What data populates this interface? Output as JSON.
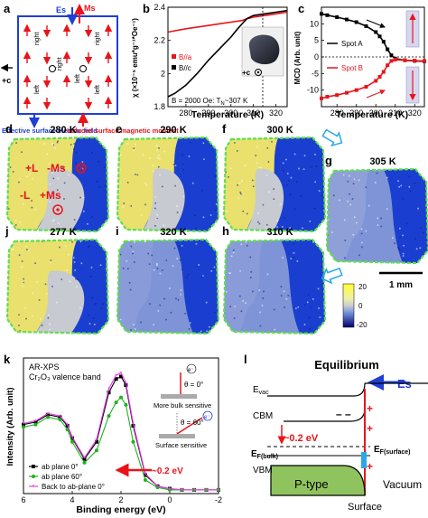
{
  "panels": {
    "a": {
      "label": "a",
      "es": "Es",
      "ms": "Ms",
      "plus_c": "+c",
      "right": "right",
      "left": "left",
      "effective_field": "Effective surface electric field",
      "induced_moment": "Induced surface magnetic moment"
    },
    "b": {
      "label": "b",
      "legend": [
        "B//a",
        "B//c"
      ],
      "condition_b": "B = 2000 Oe",
      "condition_tn": "T",
      "tn_sub": "N",
      "tn_value": "~307 K",
      "inset_label": "+c"
    },
    "c": {
      "label": "c",
      "legend": [
        "Spot A",
        "Spot B"
      ]
    },
    "maps": [
      {
        "label": "d",
        "temp": "280 K"
      },
      {
        "label": "e",
        "temp": "290 K"
      },
      {
        "label": "f",
        "temp": "300 K"
      },
      {
        "label": "g",
        "temp": "305 K"
      },
      {
        "label": "j",
        "temp": "277 K"
      },
      {
        "label": "i",
        "temp": "320 K"
      },
      {
        "label": "h",
        "temp": "310 K"
      }
    ],
    "d_annotations": {
      "plus_l": "+L",
      "minus_ms": "-Ms",
      "minus_l": "-L",
      "plus_ms": "+Ms"
    },
    "colorbar": {
      "max": "20",
      "zero": "0",
      "min": "-20",
      "scalebar": "1 mm"
    },
    "k": {
      "label": "k",
      "title1": "AR-XPS",
      "title2": "Cr₂O₃ valence band",
      "theta0": "θ = 0°",
      "theta60": "θ = 60°",
      "bulk": "More bulk sensitive",
      "surface": "Surface sensitive",
      "shift": "~0.2 eV",
      "electron": "e⁻"
    },
    "l": {
      "label": "l",
      "title": "Equilibrium",
      "es": "Es",
      "evac": "E",
      "evac_sub": "vac",
      "cbm": "CBM",
      "shift": "~0.2 eV",
      "ef_bulk": "E",
      "ef_bulk_sub": "F(bulk)",
      "ef_surf": "E",
      "ef_surf_sub": "F(surface)",
      "vbm": "VBM",
      "ptype": "P-type",
      "vacuum": "Vacuum",
      "surface": "Surface"
    }
  },
  "chart_data": [
    {
      "type": "line",
      "panel": "b",
      "xlabel": "Temperature (K)",
      "ylabel": "χ (×10⁻⁵ emu*g⁻¹*Oe⁻¹)",
      "xlim": [
        272,
        325
      ],
      "ylim": [
        1.8,
        2.4
      ],
      "xticks": [
        280,
        290,
        300,
        310,
        320
      ],
      "yticks": [
        1.8,
        2.0,
        2.2,
        2.4
      ],
      "series": [
        {
          "name": "B//a",
          "color": "#e8141a",
          "x": [
            272,
            280,
            290,
            300,
            305,
            307,
            310,
            315,
            320,
            325
          ],
          "y": [
            2.25,
            2.27,
            2.29,
            2.31,
            2.32,
            2.33,
            2.34,
            2.35,
            2.36,
            2.37
          ]
        },
        {
          "name": "B//c",
          "color": "#000000",
          "x": [
            272,
            275,
            280,
            285,
            290,
            295,
            300,
            303,
            305,
            307,
            310,
            315,
            320,
            325
          ],
          "y": [
            1.86,
            1.88,
            1.93,
            2.0,
            2.08,
            2.15,
            2.22,
            2.27,
            2.3,
            2.33,
            2.35,
            2.36,
            2.37,
            2.38
          ]
        }
      ]
    },
    {
      "type": "line",
      "panel": "c",
      "xlabel": "Temperature (K)",
      "ylabel": "MCD (Arb. unit)",
      "xlim": [
        272,
        325
      ],
      "ylim": [
        -15,
        15
      ],
      "xticks": [
        280,
        290,
        300,
        310,
        320
      ],
      "yticks": [
        -10,
        -5,
        0,
        5,
        10
      ],
      "series": [
        {
          "name": "Spot A",
          "color": "#000000",
          "x": [
            272,
            275,
            280,
            285,
            290,
            295,
            300,
            302,
            304,
            306,
            308,
            310,
            315,
            320,
            325
          ],
          "y": [
            13,
            12.6,
            12,
            11.3,
            10.5,
            9.3,
            7.5,
            6.2,
            4.6,
            2.3,
            0.5,
            -0.5,
            -1,
            -1.2,
            -1.3
          ]
        },
        {
          "name": "Spot B",
          "color": "#e8141a",
          "x": [
            272,
            275,
            280,
            285,
            290,
            295,
            300,
            302,
            304,
            306,
            308,
            310,
            315,
            320,
            325
          ],
          "y": [
            -12.5,
            -12,
            -11.5,
            -10.8,
            -10,
            -9,
            -7.2,
            -6,
            -4.5,
            -2.5,
            -1.2,
            -0.8,
            -1,
            -1.1,
            -1.2
          ]
        }
      ]
    },
    {
      "type": "line",
      "panel": "k",
      "xlabel": "Binding energy (eV)",
      "ylabel": "Intensity (Arb. unit)",
      "xlim": [
        6,
        -2
      ],
      "ylim": [
        0,
        1.1
      ],
      "xticks": [
        6,
        4,
        2,
        0,
        -2
      ],
      "series": [
        {
          "name": "ab plane 0°",
          "color": "#000000",
          "x": [
            6,
            5.5,
            5,
            4.5,
            4.2,
            4.0,
            3.5,
            3.0,
            2.5,
            2.2,
            2.0,
            1.8,
            1.5,
            1.0,
            0.5,
            0,
            -0.5,
            -1,
            -1.5,
            -2
          ],
          "y": [
            0.56,
            0.58,
            0.64,
            0.62,
            0.55,
            0.45,
            0.28,
            0.42,
            0.82,
            0.93,
            0.95,
            0.88,
            0.55,
            0.15,
            0.06,
            0.04,
            0.03,
            0.03,
            0.03,
            0.03
          ]
        },
        {
          "name": "ab plane 60°",
          "color": "#22b022",
          "x": [
            6,
            5.5,
            5,
            4.5,
            4.2,
            4.0,
            3.5,
            3.0,
            2.5,
            2.2,
            2.0,
            1.8,
            1.5,
            1.0,
            0.5,
            0,
            -0.5,
            -1,
            -1.5,
            -2
          ],
          "y": [
            0.54,
            0.56,
            0.62,
            0.6,
            0.52,
            0.42,
            0.25,
            0.35,
            0.63,
            0.74,
            0.78,
            0.72,
            0.42,
            0.11,
            0.05,
            0.03,
            0.03,
            0.03,
            0.03,
            0.03
          ]
        },
        {
          "name": "Back to ab-plane 0°",
          "color": "#e838e8",
          "x": [
            6,
            5.5,
            5,
            4.5,
            4.2,
            4.0,
            3.5,
            3.0,
            2.5,
            2.2,
            2.0,
            1.8,
            1.5,
            1.0,
            0.5,
            0,
            -0.5,
            -1,
            -1.5,
            -2
          ],
          "y": [
            0.57,
            0.59,
            0.65,
            0.63,
            0.56,
            0.46,
            0.29,
            0.44,
            0.85,
            0.96,
            0.98,
            0.9,
            0.57,
            0.16,
            0.06,
            0.04,
            0.03,
            0.03,
            0.03,
            0.03
          ]
        }
      ]
    }
  ]
}
